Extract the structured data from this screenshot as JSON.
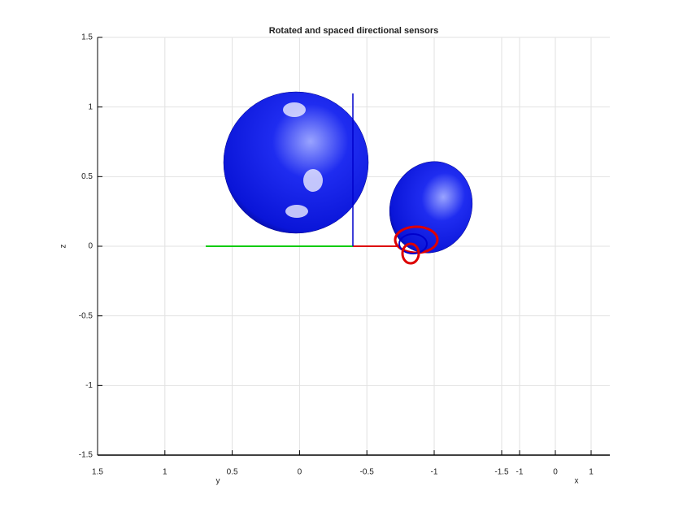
{
  "chart_data": {
    "type": "surface3d",
    "title": "Rotated and spaced directional sensors",
    "zlabel": "z",
    "ylabel": "y",
    "xlabel": "x",
    "zlim": [
      -1.5,
      1.5
    ],
    "zticks": [
      -1.5,
      -1,
      -0.5,
      0,
      0.5,
      1,
      1.5
    ],
    "ylim": [
      1.5,
      -1
    ],
    "yticks": [
      1.5,
      1,
      0.5,
      0,
      -0.5,
      -1
    ],
    "xlim": [
      -1.5,
      1
    ],
    "xticks": [
      -1.5,
      -1,
      0,
      1
    ],
    "grid": true
  }
}
